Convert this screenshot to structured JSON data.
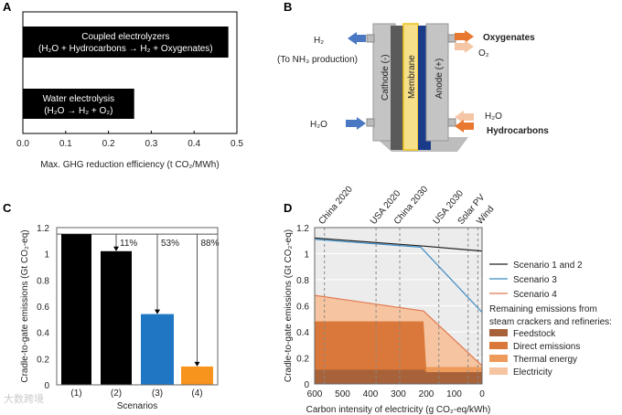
{
  "panels": {
    "a": "A",
    "b": "B",
    "c": "C",
    "d": "D"
  },
  "diagram_b": {
    "h2_out": "H₂",
    "nh3_note": "(To NH₃ production)",
    "h2o_in_left": "H₂O",
    "cathode": "Cathode (-)",
    "membrane": "Membrane",
    "anode": "Anode (+)",
    "oxygenates": "Oxygenates",
    "o2": "O₂",
    "h2o_in_right": "H₂O",
    "hydrocarbons": "Hydrocarbons",
    "colors": {
      "blue_arrow": "#4a78c2",
      "orange_arrow": "#e8782f",
      "light_orange_arrow": "#f5c6a5",
      "membrane": "#f7e08a",
      "anode_plate": "#1a3a8a",
      "cathode_plate": "#555555"
    }
  },
  "watermark": "大数跨境",
  "chart_data": [
    {
      "type": "bar",
      "orientation": "horizontal",
      "categories": [
        "Coupled electrolyzers\n(H₂O + Hydrocarbons → H₂ + Oxygenates)",
        "Water electrolysis\n(H₂O → H₂ + O₂)"
      ],
      "category_lines": [
        [
          "Coupled electrolyzers",
          "(H₂O + Hydrocarbons → H₂ + Oxygenates)"
        ],
        [
          "Water electrolysis",
          "(H₂O → H₂ + O₂)"
        ]
      ],
      "values": [
        0.48,
        0.26
      ],
      "xlabel": "Max. GHG reduction efficiency (t CO₂/MWh)",
      "xlim": [
        0,
        0.5
      ],
      "xticks": [
        "0.0",
        "0.1",
        "0.2",
        "0.3",
        "0.4",
        "0.5"
      ],
      "color": "#000000"
    },
    {
      "type": "bar",
      "categories": [
        "(1)",
        "(2)",
        "(3)",
        "(4)"
      ],
      "values": [
        1.15,
        1.02,
        0.54,
        0.14
      ],
      "colors": [
        "#000000",
        "#000000",
        "#1f77c4",
        "#f7941d"
      ],
      "reductions": [
        "",
        "11%",
        "53%",
        "88%"
      ],
      "xlabel": "Scenarios",
      "ylabel": "Cradle-to-gate emissions (Gt CO₂-eq)",
      "ylim": [
        0,
        1.2
      ],
      "yticks": [
        "0",
        "0.2",
        "0.4",
        "0.6",
        "0.8",
        "1",
        "1.2"
      ]
    },
    {
      "type": "area",
      "xlabel": "Carbon intensity of electricity (g CO₂-eq/kWh)",
      "ylabel": "Cradle-to-gate emissions (Gt CO₂-eq)",
      "xlim": [
        600,
        0
      ],
      "ylim": [
        0,
        1.2
      ],
      "xticks": [
        "600",
        "500",
        "400",
        "300",
        "200",
        "100",
        "0"
      ],
      "yticks": [
        "0",
        "0.2",
        "0.4",
        "0.6",
        "0.8",
        "1",
        "1.2"
      ],
      "references": [
        {
          "label": "China 2020",
          "x": 565
        },
        {
          "label": "USA 2020",
          "x": 380
        },
        {
          "label": "China 2030",
          "x": 295
        },
        {
          "label": "USA 2030",
          "x": 155
        },
        {
          "label": "Solar PV",
          "x": 50
        },
        {
          "label": "Wind",
          "x": 15
        }
      ],
      "areas_x": [
        600,
        210,
        200,
        0
      ],
      "areas": [
        {
          "name": "Electricity",
          "color": "#f6c4a0",
          "top": [
            0.68,
            0.56,
            0.545,
            0.14
          ]
        },
        {
          "name": "Thermal energy",
          "color": "#ee9a5a",
          "top": [
            0.48,
            0.48,
            0.13,
            0.13
          ]
        },
        {
          "name": "Direct emissions",
          "color": "#d9783a",
          "top": [
            0.48,
            0.48,
            0.09,
            0.09
          ]
        },
        {
          "name": "Feedstock",
          "color": "#a8623a",
          "top": [
            0.11,
            0.11,
            0.09,
            0.09
          ]
        }
      ],
      "series": [
        {
          "name": "Scenario 1 and 2",
          "color": "#222222",
          "x": [
            600,
            220,
            0
          ],
          "y": [
            1.12,
            1.06,
            1.02
          ]
        },
        {
          "name": "Scenario 3",
          "color": "#3b8ac4",
          "x": [
            600,
            220,
            0
          ],
          "y": [
            1.11,
            1.05,
            0.55
          ]
        },
        {
          "name": "Scenario 4",
          "color": "#e07850",
          "x": [
            600,
            210,
            0
          ],
          "y": [
            0.68,
            0.56,
            0.14
          ]
        }
      ],
      "legend_heading": [
        "Remaining emissions from",
        "steam crackers and refineries:"
      ],
      "legend_areas": [
        "Feedstock",
        "Direct emissions",
        "Thermal energy",
        "Electricity"
      ],
      "legend_placement": "right"
    }
  ]
}
